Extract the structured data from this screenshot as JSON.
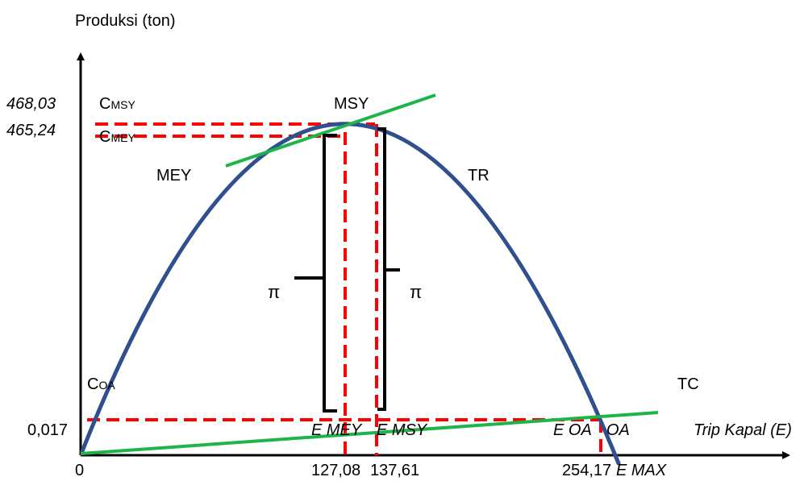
{
  "labels": {
    "y_axis_title": "Produksi (ton)",
    "x_axis_title": "Trip Kapal (E)",
    "y_value_top": "468,03",
    "y_value_second": "465,24",
    "y_value_low": "0,017",
    "origin": "0",
    "c_msy_main": "C",
    "c_msy_sub": "MSY",
    "c_mey_main": "C",
    "c_mey_sub": "MEY",
    "c_oa_main": "C",
    "c_oa_sub": "OA",
    "msy": "MSY",
    "mey": "MEY",
    "tr": "TR",
    "tc": "TC",
    "pi_left": "π",
    "pi_right": "π",
    "e_mey": "E MEY",
    "e_msy": "E MSY",
    "e_oa": "E OA",
    "oa": "OA",
    "x_tick_1": "127,08",
    "x_tick_2": "137,61",
    "x_tick_3": "254,17",
    "e_max": "E MAX"
  },
  "colors": {
    "tr_curve": "#2f4f8f",
    "tc_line": "#1db54a",
    "guide": "#ff0000",
    "axis": "#000000"
  }
}
